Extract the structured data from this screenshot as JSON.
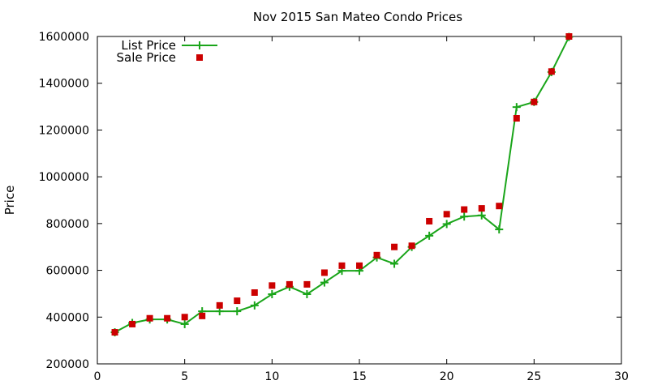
{
  "chart_data": {
    "type": "line",
    "title": "Nov 2015 San Mateo Condo Prices",
    "xlabel": "",
    "ylabel": "Price",
    "xlim": [
      0,
      30
    ],
    "ylim": [
      200000,
      1600000
    ],
    "xticks": [
      0,
      5,
      10,
      15,
      20,
      25,
      30
    ],
    "yticks": [
      200000,
      400000,
      600000,
      800000,
      1000000,
      1200000,
      1400000,
      1600000
    ],
    "grid": false,
    "legend_position": "top-left",
    "x": [
      1,
      2,
      3,
      4,
      5,
      6,
      7,
      8,
      9,
      10,
      11,
      12,
      13,
      14,
      15,
      16,
      17,
      18,
      19,
      20,
      21,
      22,
      23,
      24,
      25,
      26,
      27
    ],
    "series": [
      {
        "name": "List Price",
        "style": "line-with-plus-markers",
        "color": "#1aa51a",
        "values": [
          335000,
          375000,
          390000,
          390000,
          370000,
          425000,
          425000,
          425000,
          450000,
          498000,
          530000,
          498000,
          548000,
          598000,
          598000,
          655000,
          628000,
          700000,
          748000,
          798000,
          830000,
          835000,
          775000,
          1298000,
          1320000,
          1448000,
          1598000
        ]
      },
      {
        "name": "Sale Price",
        "style": "square-markers",
        "color": "#cc0000",
        "values": [
          335000,
          370000,
          395000,
          395000,
          400000,
          405000,
          450000,
          470000,
          505000,
          535000,
          540000,
          540000,
          590000,
          620000,
          620000,
          665000,
          700000,
          705000,
          810000,
          840000,
          860000,
          865000,
          875000,
          1250000,
          1320000,
          1450000,
          1600000
        ]
      }
    ]
  }
}
